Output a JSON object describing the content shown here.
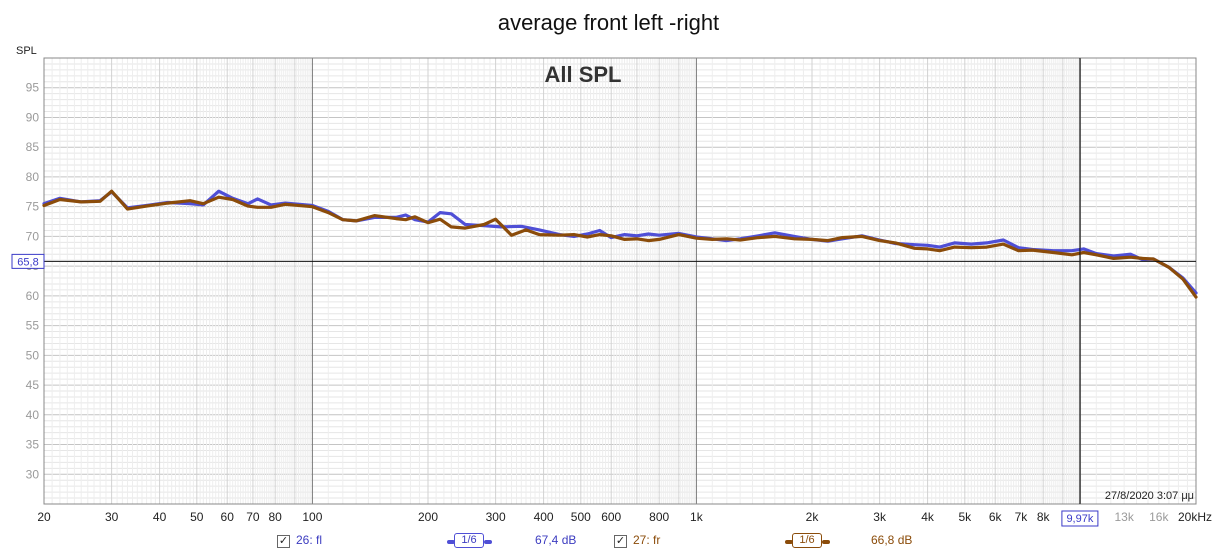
{
  "chart_data": {
    "type": "line",
    "title": "average front left -right",
    "subtitle": "All SPL",
    "ylabel": "SPL",
    "xlabel": "",
    "x_scale": "log",
    "xlim": [
      20,
      20000
    ],
    "ylim": [
      25,
      100
    ],
    "grid": true,
    "y_ticks": [
      30,
      35,
      40,
      45,
      50,
      55,
      60,
      65,
      70,
      75,
      80,
      85,
      90,
      95
    ],
    "x_ticks": [
      {
        "v": 20,
        "label": "20"
      },
      {
        "v": 30,
        "label": "30"
      },
      {
        "v": 40,
        "label": "40"
      },
      {
        "v": 50,
        "label": "50"
      },
      {
        "v": 60,
        "label": "60"
      },
      {
        "v": 70,
        "label": "70"
      },
      {
        "v": 80,
        "label": "80"
      },
      {
        "v": 100,
        "label": "100"
      },
      {
        "v": 200,
        "label": "200"
      },
      {
        "v": 300,
        "label": "300"
      },
      {
        "v": 400,
        "label": "400"
      },
      {
        "v": 500,
        "label": "500"
      },
      {
        "v": 600,
        "label": "600"
      },
      {
        "v": 800,
        "label": "800"
      },
      {
        "v": 1000,
        "label": "1k"
      },
      {
        "v": 2000,
        "label": "2k"
      },
      {
        "v": 3000,
        "label": "3k"
      },
      {
        "v": 4000,
        "label": "4k"
      },
      {
        "v": 5000,
        "label": "5k"
      },
      {
        "v": 6000,
        "label": "6k"
      },
      {
        "v": 7000,
        "label": "7k"
      },
      {
        "v": 8000,
        "label": "8k"
      },
      {
        "v": 13000,
        "label": "13k"
      },
      {
        "v": 16000,
        "label": "16k"
      },
      {
        "v": 20000,
        "label": "20kHz"
      }
    ],
    "cursor": {
      "x": 9970,
      "y": 65.8,
      "x_label": "9,97k",
      "y_label": "65,8"
    },
    "timestamp": "27/8/2020 3:07 μμ",
    "series": [
      {
        "name": "26: fl",
        "color": "#4f4fd6",
        "points": [
          [
            20,
            75.5
          ],
          [
            22,
            76.4
          ],
          [
            25,
            75.8
          ],
          [
            28,
            76.0
          ],
          [
            30,
            77.5
          ],
          [
            33,
            74.8
          ],
          [
            37,
            75.2
          ],
          [
            42,
            75.7
          ],
          [
            48,
            75.5
          ],
          [
            52,
            75.3
          ],
          [
            57,
            77.6
          ],
          [
            62,
            76.4
          ],
          [
            68,
            75.5
          ],
          [
            72,
            76.3
          ],
          [
            78,
            75.3
          ],
          [
            85,
            75.6
          ],
          [
            100,
            75.2
          ],
          [
            110,
            74.2
          ],
          [
            120,
            72.8
          ],
          [
            130,
            72.6
          ],
          [
            145,
            73.2
          ],
          [
            165,
            73.2
          ],
          [
            175,
            73.6
          ],
          [
            185,
            72.8
          ],
          [
            200,
            72.4
          ],
          [
            215,
            74.0
          ],
          [
            230,
            73.8
          ],
          [
            250,
            72.0
          ],
          [
            280,
            71.8
          ],
          [
            310,
            71.6
          ],
          [
            350,
            71.7
          ],
          [
            390,
            71.1
          ],
          [
            440,
            70.3
          ],
          [
            480,
            70.0
          ],
          [
            520,
            70.4
          ],
          [
            560,
            71.0
          ],
          [
            600,
            69.8
          ],
          [
            650,
            70.3
          ],
          [
            700,
            70.1
          ],
          [
            750,
            70.4
          ],
          [
            800,
            70.2
          ],
          [
            900,
            70.5
          ],
          [
            1000,
            69.9
          ],
          [
            1100,
            69.6
          ],
          [
            1200,
            69.3
          ],
          [
            1300,
            69.6
          ],
          [
            1450,
            70.1
          ],
          [
            1600,
            70.6
          ],
          [
            1800,
            70.0
          ],
          [
            2000,
            69.5
          ],
          [
            2200,
            69.2
          ],
          [
            2400,
            69.6
          ],
          [
            2700,
            70.1
          ],
          [
            3000,
            69.4
          ],
          [
            3300,
            68.8
          ],
          [
            3700,
            68.6
          ],
          [
            4000,
            68.5
          ],
          [
            4300,
            68.2
          ],
          [
            4700,
            68.9
          ],
          [
            5200,
            68.7
          ],
          [
            5700,
            68.9
          ],
          [
            6300,
            69.4
          ],
          [
            6900,
            68.1
          ],
          [
            7500,
            67.8
          ],
          [
            8500,
            67.6
          ],
          [
            9500,
            67.6
          ],
          [
            10200,
            67.9
          ],
          [
            11000,
            67.1
          ],
          [
            12200,
            66.7
          ],
          [
            13500,
            67.0
          ],
          [
            14500,
            66.1
          ],
          [
            15500,
            66.2
          ],
          [
            17000,
            64.8
          ],
          [
            18500,
            63.0
          ],
          [
            20000,
            60.5
          ]
        ]
      },
      {
        "name": "27: fr",
        "color": "#8b4c0a",
        "points": [
          [
            20,
            75.2
          ],
          [
            22,
            76.2
          ],
          [
            25,
            75.8
          ],
          [
            28,
            75.9
          ],
          [
            30,
            77.6
          ],
          [
            33,
            74.6
          ],
          [
            37,
            75.1
          ],
          [
            42,
            75.6
          ],
          [
            48,
            76.0
          ],
          [
            52,
            75.5
          ],
          [
            57,
            76.6
          ],
          [
            62,
            76.2
          ],
          [
            68,
            75.1
          ],
          [
            72,
            74.9
          ],
          [
            78,
            74.9
          ],
          [
            85,
            75.4
          ],
          [
            100,
            75.0
          ],
          [
            110,
            74.0
          ],
          [
            120,
            72.8
          ],
          [
            130,
            72.6
          ],
          [
            145,
            73.5
          ],
          [
            165,
            73.0
          ],
          [
            175,
            72.8
          ],
          [
            185,
            73.3
          ],
          [
            200,
            72.3
          ],
          [
            215,
            72.9
          ],
          [
            230,
            71.6
          ],
          [
            250,
            71.4
          ],
          [
            280,
            72.0
          ],
          [
            300,
            72.9
          ],
          [
            330,
            70.2
          ],
          [
            360,
            71.1
          ],
          [
            390,
            70.3
          ],
          [
            440,
            70.2
          ],
          [
            480,
            70.3
          ],
          [
            520,
            69.9
          ],
          [
            560,
            70.3
          ],
          [
            600,
            70.1
          ],
          [
            650,
            69.5
          ],
          [
            700,
            69.6
          ],
          [
            750,
            69.3
          ],
          [
            800,
            69.5
          ],
          [
            900,
            70.3
          ],
          [
            1000,
            69.7
          ],
          [
            1100,
            69.5
          ],
          [
            1200,
            69.6
          ],
          [
            1300,
            69.4
          ],
          [
            1450,
            69.8
          ],
          [
            1600,
            70.0
          ],
          [
            1800,
            69.6
          ],
          [
            2000,
            69.5
          ],
          [
            2200,
            69.3
          ],
          [
            2400,
            69.8
          ],
          [
            2700,
            70.0
          ],
          [
            3000,
            69.3
          ],
          [
            3300,
            68.9
          ],
          [
            3700,
            68.0
          ],
          [
            4000,
            67.9
          ],
          [
            4300,
            67.6
          ],
          [
            4700,
            68.2
          ],
          [
            5200,
            68.1
          ],
          [
            5700,
            68.2
          ],
          [
            6300,
            68.7
          ],
          [
            6900,
            67.6
          ],
          [
            7500,
            67.7
          ],
          [
            8500,
            67.3
          ],
          [
            9500,
            66.9
          ],
          [
            10200,
            67.3
          ],
          [
            11000,
            66.9
          ],
          [
            12200,
            66.3
          ],
          [
            13500,
            66.5
          ],
          [
            14500,
            66.3
          ],
          [
            15500,
            66.2
          ],
          [
            17000,
            64.8
          ],
          [
            18500,
            62.8
          ],
          [
            20000,
            59.8
          ]
        ]
      }
    ]
  },
  "legend": [
    {
      "checked": "✓",
      "name": "26: fl",
      "smoothing": "1/6",
      "value": "67,4 dB",
      "color": "#4f4fd6"
    },
    {
      "checked": "✓",
      "name": "27: fr",
      "smoothing": "1/6",
      "value": "66,8 dB",
      "color": "#8b4c0a"
    }
  ]
}
